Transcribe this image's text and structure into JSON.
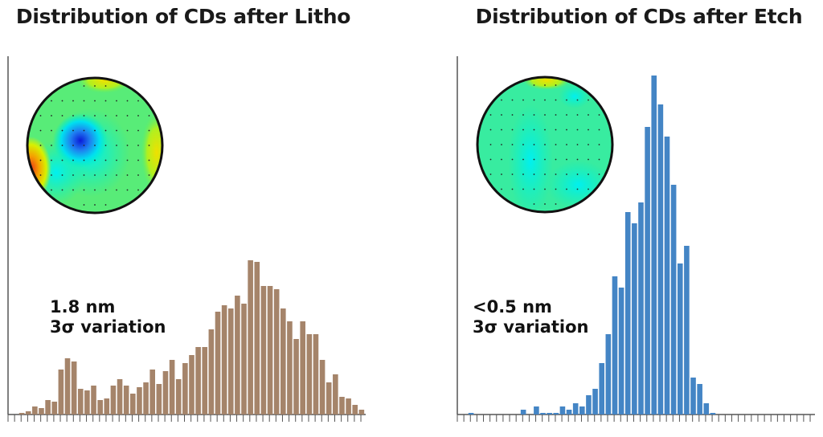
{
  "charts_colors": {
    "litho": "#a5846a",
    "etch": "#4485c5",
    "axis": "#555555"
  },
  "chart_data": [
    {
      "type": "bar",
      "title": "Distribution of CDs after Litho",
      "annotation": [
        "1.8 nm",
        "3σ variation"
      ],
      "xlabel": "",
      "ylabel": "",
      "ylim": [
        0,
        223
      ],
      "values": [
        1,
        2,
        5,
        4,
        9,
        8,
        28,
        35,
        33,
        16,
        15,
        18,
        9,
        10,
        18,
        22,
        18,
        13,
        17,
        20,
        28,
        19,
        27,
        34,
        22,
        32,
        37,
        42,
        42,
        53,
        64,
        68,
        66,
        74,
        69,
        96,
        95,
        80,
        80,
        78,
        66,
        58,
        47,
        58,
        50,
        50,
        34,
        20,
        25,
        11,
        10,
        6,
        3
      ],
      "inset": "wafer CD map (mostly green with blue center spot, yellow/red edges)"
    },
    {
      "type": "bar",
      "title": "Distribution of CDs after Etch",
      "annotation": [
        "<0.5 nm",
        "3σ variation"
      ],
      "xlabel": "",
      "ylabel": "",
      "ylim": [
        0,
        223
      ],
      "values": [
        1,
        0,
        0,
        0,
        0,
        0,
        0,
        0,
        3,
        0,
        5,
        1,
        1,
        1,
        5,
        3,
        7,
        5,
        12,
        16,
        32,
        50,
        86,
        79,
        126,
        119,
        132,
        179,
        211,
        193,
        173,
        143,
        94,
        105,
        23,
        19,
        7,
        1,
        0,
        0,
        0,
        0,
        0,
        0,
        0,
        0,
        0,
        0,
        0,
        0,
        0,
        0
      ],
      "inset": "wafer CD map (uniform green/cyan)"
    }
  ]
}
